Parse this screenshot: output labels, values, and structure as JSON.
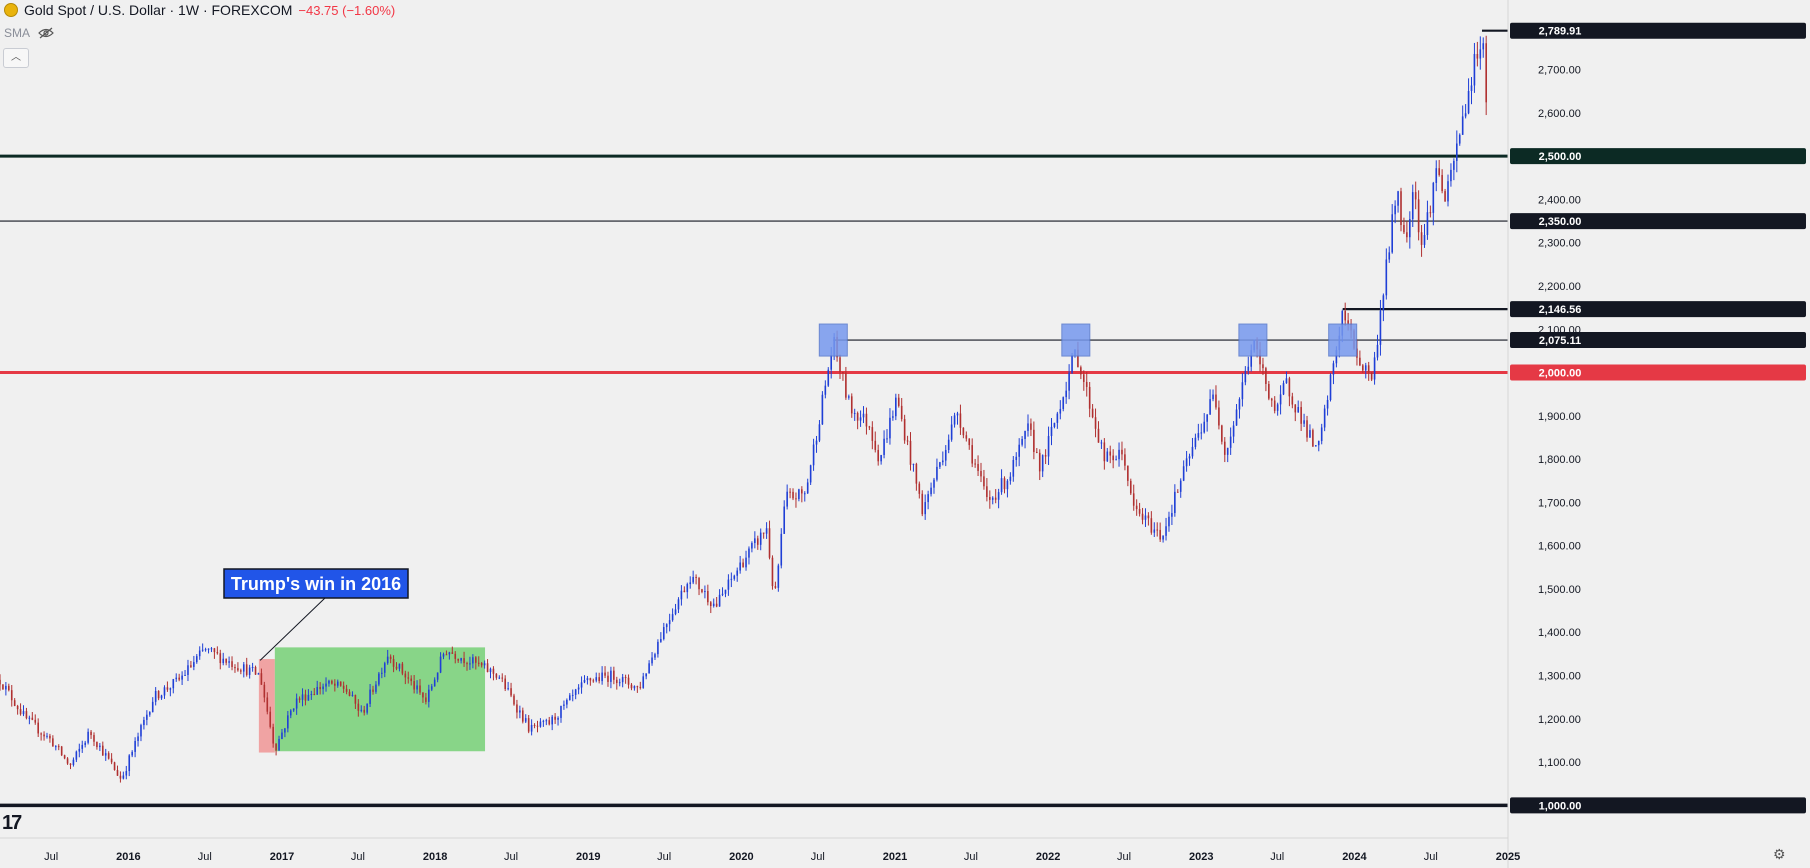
{
  "header": {
    "title": "Gold Spot / U.S. Dollar · 1W · FOREXCOM",
    "change": "−43.75 (−1.60%)",
    "indicator": "SMA"
  },
  "annotation": {
    "text": "Trump's win in 2016"
  },
  "colors": {
    "up": "#1f3fd6",
    "down": "#b03030",
    "support": "#e53945",
    "resistance": "#0c2a24",
    "highlight_green": "#66cc66",
    "highlight_red": "#f08a8a",
    "marker": "#7799ee"
  },
  "chart_data": {
    "type": "candlestick",
    "instrument": "Gold Spot / U.S. Dollar",
    "interval": "1W",
    "x": {
      "tick_labels": [
        "Jul",
        "2016",
        "Jul",
        "2017",
        "Jul",
        "2018",
        "Jul",
        "2019",
        "Jul",
        "2020",
        "Jul",
        "2021",
        "Jul",
        "2022",
        "Jul",
        "2023",
        "Jul",
        "2024",
        "Jul",
        "2025"
      ],
      "range": [
        "2015-03",
        "2025-01"
      ]
    },
    "y": {
      "tick_labels": [
        "1,000.00",
        "1,100.00",
        "1,200.00",
        "1,300.00",
        "1,400.00",
        "1,500.00",
        "1,600.00",
        "1,700.00",
        "1,800.00",
        "1,900.00",
        "2,000.00",
        "2,100.00",
        "2,200.00",
        "2,300.00",
        "2,400.00",
        "2,600.00",
        "2,700.00"
      ],
      "range": [
        980,
        2810
      ],
      "position": "right"
    },
    "price_levels": [
      {
        "label": "2,789.91",
        "value": 2789.91,
        "style": "black"
      },
      {
        "label": "2,500.00",
        "value": 2500,
        "style": "resistance"
      },
      {
        "label": "2,350.00",
        "value": 2350,
        "style": "black"
      },
      {
        "label": "2,146.56",
        "value": 2146.56,
        "style": "black"
      },
      {
        "label": "2,075.11",
        "value": 2075.11,
        "style": "black"
      },
      {
        "label": "2,000.00",
        "value": 2000,
        "style": "support"
      },
      {
        "label": "1,000.00",
        "value": 1000,
        "style": "black"
      }
    ],
    "path": [
      [
        "2015-03-01",
        1290
      ],
      [
        "2015-05-01",
        1200
      ],
      [
        "2015-07-01",
        1150
      ],
      [
        "2015-08-15",
        1090
      ],
      [
        "2015-10-01",
        1170
      ],
      [
        "2015-12-15",
        1060
      ],
      [
        "2016-03-01",
        1250
      ],
      [
        "2016-05-01",
        1290
      ],
      [
        "2016-07-01",
        1360
      ],
      [
        "2016-09-01",
        1330
      ],
      [
        "2016-11-10",
        1300
      ],
      [
        "2016-12-15",
        1130
      ],
      [
        "2017-02-01",
        1240
      ],
      [
        "2017-04-15",
        1280
      ],
      [
        "2017-06-01",
        1270
      ],
      [
        "2017-07-10",
        1210
      ],
      [
        "2017-09-10",
        1350
      ],
      [
        "2017-12-10",
        1240
      ],
      [
        "2018-01-25",
        1360
      ],
      [
        "2018-04-01",
        1330
      ],
      [
        "2018-06-01",
        1300
      ],
      [
        "2018-08-15",
        1175
      ],
      [
        "2018-10-01",
        1190
      ],
      [
        "2019-01-01",
        1290
      ],
      [
        "2019-03-01",
        1300
      ],
      [
        "2019-05-01",
        1270
      ],
      [
        "2019-06-30",
        1410
      ],
      [
        "2019-09-01",
        1530
      ],
      [
        "2019-11-01",
        1460
      ],
      [
        "2020-01-01",
        1560
      ],
      [
        "2020-03-01",
        1640
      ],
      [
        "2020-03-20",
        1470
      ],
      [
        "2020-04-15",
        1710
      ],
      [
        "2020-06-01",
        1720
      ],
      [
        "2020-08-07",
        2070
      ],
      [
        "2020-09-15",
        1920
      ],
      [
        "2020-11-01",
        1880
      ],
      [
        "2020-11-25",
        1800
      ],
      [
        "2021-01-05",
        1940
      ],
      [
        "2021-03-08",
        1680
      ],
      [
        "2021-05-30",
        1910
      ],
      [
        "2021-08-10",
        1700
      ],
      [
        "2021-09-30",
        1760
      ],
      [
        "2021-11-15",
        1870
      ],
      [
        "2021-12-15",
        1780
      ],
      [
        "2022-03-08",
        2050
      ],
      [
        "2022-05-15",
        1800
      ],
      [
        "2022-07-01",
        1810
      ],
      [
        "2022-07-20",
        1690
      ],
      [
        "2022-09-28",
        1620
      ],
      [
        "2022-12-01",
        1800
      ],
      [
        "2023-02-01",
        1950
      ],
      [
        "2023-02-28",
        1810
      ],
      [
        "2023-05-04",
        2070
      ],
      [
        "2023-06-30",
        1900
      ],
      [
        "2023-07-20",
        1980
      ],
      [
        "2023-10-05",
        1810
      ],
      [
        "2023-12-04",
        2140
      ],
      [
        "2024-01-15",
        2020
      ],
      [
        "2024-02-14",
        1990
      ],
      [
        "2024-03-08",
        2180
      ],
      [
        "2024-04-12",
        2430
      ],
      [
        "2024-05-01",
        2290
      ],
      [
        "2024-05-20",
        2440
      ],
      [
        "2024-06-10",
        2290
      ],
      [
        "2024-07-17",
        2480
      ],
      [
        "2024-08-05",
        2390
      ],
      [
        "2024-09-01",
        2520
      ],
      [
        "2024-10-01",
        2660
      ],
      [
        "2024-10-31",
        2789.91
      ],
      [
        "2024-11-15",
        2560
      ]
    ]
  }
}
